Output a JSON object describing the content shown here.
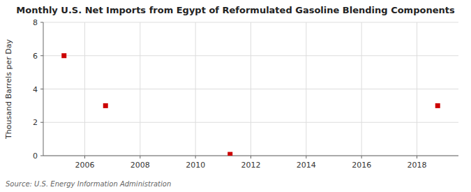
{
  "chart_data": {
    "type": "scatter",
    "title": "Monthly U.S. Net Imports from Egypt of Reformulated Gasoline Blending Components",
    "ylabel": "Thousand Barrels per Day",
    "source": "Source: U.S. Energy Information Administration",
    "x": [
      2005.25,
      2006.75,
      2011.25,
      2018.75
    ],
    "values": [
      6.0,
      3.0,
      0.08,
      3.0
    ],
    "color": "#cc0000",
    "marker": "square",
    "xlim": [
      2004.5,
      2019.5
    ],
    "ylim": [
      0,
      8
    ],
    "xticks": [
      2006,
      2008,
      2010,
      2012,
      2014,
      2016,
      2018
    ],
    "yticks": [
      0,
      2,
      4,
      6,
      8
    ],
    "grid": true
  }
}
